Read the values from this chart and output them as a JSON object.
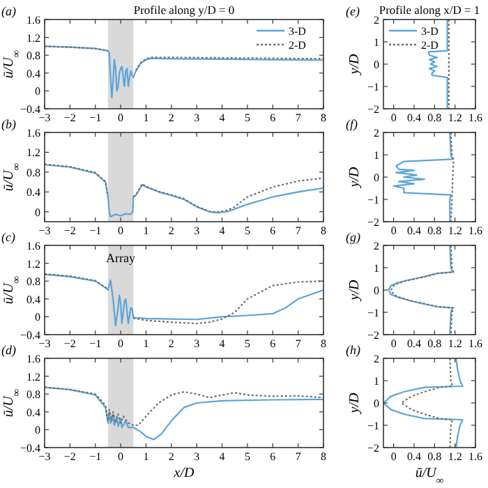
{
  "chart_data": [
    {
      "type": "line",
      "title": "Profile along y/D = 0",
      "annotations": [
        "(a)"
      ],
      "ylabel": "ū/U$_{∞}$",
      "xlim": [
        -3,
        8
      ],
      "xticks": [
        {
          "value": -3,
          "label": "−3"
        },
        {
          "value": -2,
          "label": "−2"
        },
        {
          "value": -1,
          "label": "−1"
        },
        0,
        1,
        2,
        3,
        4,
        5,
        6,
        7,
        8
      ],
      "ylim": [
        -0.4,
        1.6
      ],
      "yticks": [
        {
          "value": -0.4,
          "label": "−0.4"
        },
        0,
        0.4,
        0.8,
        1.2,
        1.6
      ],
      "legend": "top right",
      "bands": [
        {
          "axis": "x",
          "from": -0.5,
          "to": 0.5,
          "color": "#d9d9d9"
        }
      ],
      "series": [
        {
          "name": "3-D",
          "color": "#5aa5da",
          "line_style": "solid",
          "x": [
            -3,
            -2,
            -1,
            -0.5,
            -0.45,
            -0.4,
            -0.35,
            -0.3,
            -0.25,
            -0.2,
            -0.15,
            -0.1,
            -0.05,
            0,
            0.05,
            0.1,
            0.15,
            0.2,
            0.25,
            0.3,
            0.35,
            0.4,
            0.45,
            0.5,
            0.6,
            0.8,
            1,
            1.2,
            2,
            4,
            6,
            8
          ],
          "values": [
            1.0,
            0.98,
            0.95,
            0.9,
            0.85,
            0.3,
            -0.15,
            0.2,
            0.7,
            0.5,
            0.0,
            0.1,
            0.4,
            0.5,
            0.55,
            0.3,
            0.1,
            0.45,
            0.5,
            0.1,
            0.3,
            0.45,
            0.35,
            0.3,
            0.45,
            0.62,
            0.7,
            0.73,
            0.72,
            0.71,
            0.7,
            0.69
          ]
        },
        {
          "name": "2-D",
          "color": "#707070",
          "line_style": "dotted",
          "x": [
            -3,
            -2,
            -1,
            -0.5,
            0,
            0.6,
            0.8,
            1,
            1.2,
            2,
            4,
            6,
            8
          ],
          "values": [
            1.0,
            0.98,
            0.95,
            0.9,
            null,
            0.46,
            0.64,
            0.72,
            0.75,
            0.75,
            0.74,
            0.73,
            0.72
          ]
        }
      ]
    },
    {
      "type": "line",
      "annotations": [
        "(b)"
      ],
      "ylabel": "ū/U$_{∞}$",
      "xlim": [
        -3,
        8
      ],
      "xticks": [
        {
          "value": -3,
          "label": "−3"
        },
        {
          "value": -2,
          "label": "−2"
        },
        {
          "value": -1,
          "label": "−1"
        },
        0,
        1,
        2,
        3,
        4,
        5,
        6,
        7,
        8
      ],
      "ylim": [
        -0.2,
        1.6
      ],
      "yticks": [
        0,
        0.4,
        0.8,
        1.2,
        1.6
      ],
      "bands": [
        {
          "axis": "x",
          "from": -0.5,
          "to": 0.5,
          "color": "#d9d9d9"
        }
      ],
      "series": [
        {
          "color": "#5aa5da",
          "line_style": "solid",
          "x": [
            -3,
            -2,
            -1,
            -0.6,
            -0.5,
            -0.45,
            -0.4,
            -0.2,
            0,
            0.2,
            0.4,
            0.48,
            0.5,
            0.6,
            0.85,
            1,
            1.5,
            2,
            2.5,
            3,
            3.5,
            3.8,
            4.2,
            5,
            6,
            7,
            8
          ],
          "values": [
            0.95,
            0.9,
            0.78,
            0.6,
            0.3,
            0.0,
            -0.1,
            -0.05,
            -0.08,
            -0.04,
            -0.05,
            0.0,
            0.3,
            0.33,
            0.55,
            0.5,
            0.4,
            0.33,
            0.25,
            0.1,
            0.0,
            -0.02,
            0.0,
            0.15,
            0.3,
            0.4,
            0.48
          ]
        },
        {
          "color": "#707070",
          "line_style": "dotted",
          "x": [
            -3,
            -2,
            -1,
            -0.6,
            -0.5,
            0,
            0.5,
            0.6,
            0.85,
            1,
            1.5,
            2,
            2.5,
            3,
            3.5,
            3.8,
            4.2,
            4.5,
            5,
            6,
            7,
            8
          ],
          "values": [
            0.96,
            0.91,
            0.79,
            0.61,
            0.31,
            null,
            0.31,
            0.34,
            0.56,
            0.51,
            0.41,
            0.34,
            0.26,
            0.11,
            0.01,
            -0.01,
            0.03,
            0.1,
            0.3,
            0.5,
            0.62,
            0.68
          ]
        }
      ]
    },
    {
      "type": "line",
      "annotations": [
        "(c)"
      ],
      "ylabel": "ū/U$_{∞}$",
      "xlim": [
        -3,
        8
      ],
      "xticks": [
        {
          "value": -3,
          "label": "−3"
        },
        {
          "value": -2,
          "label": "−2"
        },
        {
          "value": -1,
          "label": "−1"
        },
        0,
        1,
        2,
        3,
        4,
        5,
        6,
        7,
        8
      ],
      "ylim": [
        -0.4,
        1.6
      ],
      "yticks": [
        {
          "value": -0.4,
          "label": "−0.4"
        },
        0,
        0.4,
        0.8,
        1.2,
        1.6
      ],
      "bands": [
        {
          "axis": "x",
          "from": -0.5,
          "to": 0.5,
          "label": "Array",
          "color": "#d9d9d9"
        }
      ],
      "series": [
        {
          "color": "#5aa5da",
          "line_style": "solid",
          "x": [
            -3,
            -2,
            -1,
            -0.6,
            -0.5,
            -0.4,
            -0.3,
            -0.2,
            -0.1,
            -0.05,
            0,
            0.05,
            0.15,
            0.2,
            0.3,
            0.4,
            0.45,
            0.5,
            1,
            2,
            3,
            4,
            5,
            6,
            6.5,
            7,
            8
          ],
          "values": [
            0.95,
            0.9,
            0.8,
            0.65,
            0.6,
            0.82,
            0.4,
            -0.2,
            0.2,
            0.48,
            0.3,
            -0.15,
            0.35,
            0.4,
            -0.15,
            0.2,
            0.18,
            -0.02,
            -0.04,
            -0.05,
            -0.06,
            0.0,
            0.03,
            0.07,
            0.2,
            0.4,
            0.6
          ]
        },
        {
          "color": "#707070",
          "line_style": "dotted",
          "x": [
            -3,
            -2,
            -1,
            -0.6,
            -0.5,
            0,
            0.5,
            1,
            2,
            3,
            3.5,
            4,
            4.5,
            5,
            6,
            7,
            8
          ],
          "values": [
            0.96,
            0.91,
            0.81,
            0.66,
            0.61,
            null,
            -0.03,
            -0.08,
            -0.12,
            -0.15,
            -0.12,
            -0.05,
            0.1,
            0.4,
            0.7,
            0.78,
            0.8
          ]
        }
      ]
    },
    {
      "type": "line",
      "annotations": [
        "(d)"
      ],
      "xlabel": "x/D",
      "ylabel": "ū/U$_{∞}$",
      "xlim": [
        -3,
        8
      ],
      "xticks": [
        {
          "value": -3,
          "label": "−3"
        },
        {
          "value": -2,
          "label": "−2"
        },
        {
          "value": -1,
          "label": "−1"
        },
        0,
        1,
        2,
        3,
        4,
        5,
        6,
        7,
        8
      ],
      "ylim": [
        -0.4,
        1.6
      ],
      "yticks": [
        {
          "value": -0.4,
          "label": "−0.4"
        },
        0,
        0.4,
        0.8,
        1.2,
        1.6
      ],
      "bands": [
        {
          "axis": "x",
          "from": -0.5,
          "to": 0.5,
          "color": "#d9d9d9"
        }
      ],
      "series": [
        {
          "color": "#5aa5da",
          "line_style": "solid",
          "x": [
            -3,
            -2,
            -1,
            -0.6,
            -0.5,
            -0.45,
            -0.4,
            -0.3,
            -0.25,
            -0.15,
            -0.1,
            0,
            0.05,
            0.2,
            0.3,
            0.5,
            0.8,
            1,
            1.3,
            1.6,
            2,
            2.5,
            3,
            4,
            6,
            8
          ],
          "values": [
            0.95,
            0.9,
            0.78,
            0.5,
            0.15,
            0.4,
            0.15,
            0.35,
            0.1,
            0.3,
            0.08,
            0.25,
            0.05,
            0.2,
            0.05,
            0.05,
            -0.05,
            -0.15,
            -0.22,
            -0.1,
            0.2,
            0.5,
            0.6,
            0.65,
            0.67,
            0.68
          ]
        },
        {
          "color": "#707070",
          "line_style": "dotted",
          "x": [
            -3,
            -2,
            -1,
            -0.6,
            -0.5,
            -0.45,
            -0.35,
            -0.3,
            -0.2,
            -0.1,
            0,
            0.1,
            0.3,
            0.5,
            0.7,
            1,
            1.5,
            2,
            2.5,
            3,
            3.5,
            4.5,
            5,
            6,
            7,
            8
          ],
          "values": [
            0.95,
            0.9,
            0.8,
            0.55,
            0.2,
            0.45,
            0.2,
            0.4,
            0.15,
            0.35,
            0.15,
            0.3,
            0.15,
            0.1,
            0.1,
            0.3,
            0.6,
            0.78,
            0.85,
            0.8,
            0.72,
            0.83,
            0.78,
            0.75,
            0.76,
            0.72
          ]
        }
      ]
    },
    {
      "type": "line",
      "title": "Profile along x/D = 1",
      "annotations": [
        "(e)"
      ],
      "ylabel": "y/D",
      "xlim": [
        -0.2,
        1.6
      ],
      "xticks": [
        0,
        0.4,
        0.8,
        1.2,
        1.6
      ],
      "ylim": [
        -2,
        2
      ],
      "yticks": [
        {
          "value": -2,
          "label": "−2"
        },
        {
          "value": -1,
          "label": "−1"
        },
        0,
        1,
        2
      ],
      "legend": "top left",
      "series": [
        {
          "name": "3-D",
          "color": "#5aa5da",
          "line_style": "solid",
          "x": [
            1.05,
            1.05,
            1.05,
            0.68,
            0.7,
            0.85,
            0.7,
            0.8,
            0.72,
            0.85,
            0.7,
            0.8,
            0.75,
            0.75,
            1.05,
            1.05
          ],
          "values": [
            2,
            1,
            0.6,
            0.55,
            0.4,
            0.3,
            0.2,
            0.1,
            0,
            -0.1,
            -0.2,
            -0.3,
            -0.4,
            -0.5,
            -0.6,
            -2
          ]
        },
        {
          "name": "2-D",
          "color": "#707070",
          "line_style": "dotted",
          "x": [
            1.08,
            1.08,
            1.08,
            1.08
          ],
          "values": [
            2,
            0.6,
            -0.6,
            -2
          ]
        }
      ]
    },
    {
      "type": "line",
      "annotations": [
        "(f)"
      ],
      "ylabel": "y/D",
      "xlim": [
        -0.2,
        1.6
      ],
      "xticks": [
        0,
        0.4,
        0.8,
        1.2,
        1.6
      ],
      "ylim": [
        -2,
        2
      ],
      "yticks": [
        {
          "value": -2,
          "label": "−2"
        },
        {
          "value": -1,
          "label": "−1"
        },
        0,
        1,
        2
      ],
      "series": [
        {
          "color": "#5aa5da",
          "line_style": "solid",
          "x": [
            1.1,
            1.12,
            1.15,
            0.2,
            0.05,
            0.1,
            0.4,
            0.05,
            0.45,
            0.2,
            0.6,
            0.1,
            0.4,
            0.0,
            0.2,
            0.2,
            1.12,
            1.1,
            1.1
          ],
          "values": [
            2,
            1,
            0.8,
            0.7,
            0.5,
            0.35,
            0.3,
            0.2,
            0.1,
            0,
            -0.1,
            -0.2,
            -0.3,
            -0.4,
            -0.5,
            -0.7,
            -0.8,
            -1,
            -2
          ]
        },
        {
          "color": "#707070",
          "line_style": "dotted",
          "x": [
            1.12,
            1.14,
            1.17,
            1.14,
            1.12
          ],
          "values": [
            2,
            1,
            0.8,
            -1,
            -2
          ]
        }
      ]
    },
    {
      "type": "line",
      "annotations": [
        "(g)"
      ],
      "ylabel": "y/D",
      "xlim": [
        -0.2,
        1.6
      ],
      "xticks": [
        0,
        0.4,
        0.8,
        1.2,
        1.6
      ],
      "ylim": [
        -2,
        2
      ],
      "yticks": [
        {
          "value": -2,
          "label": "−2"
        },
        {
          "value": -1,
          "label": "−1"
        },
        0,
        1,
        2
      ],
      "series": [
        {
          "color": "#5aa5da",
          "line_style": "solid",
          "x": [
            1.1,
            1.12,
            1.15,
            0.85,
            0.6,
            0.4,
            0.2,
            0.05,
            -0.05,
            -0.1,
            -0.05,
            0.05,
            0.35,
            0.55,
            0.85,
            1.15,
            1.12,
            1.1
          ],
          "values": [
            2,
            1,
            0.8,
            0.75,
            0.6,
            0.5,
            0.4,
            0.3,
            0.2,
            0,
            -0.2,
            -0.3,
            -0.5,
            -0.6,
            -0.75,
            -0.8,
            -1,
            -2
          ]
        },
        {
          "color": "#707070",
          "line_style": "dotted",
          "x": [
            1.12,
            1.14,
            1.17,
            0.87,
            0.62,
            0.42,
            0.22,
            0.08,
            0.0,
            -0.05,
            0.0,
            0.08,
            0.37,
            0.57,
            0.87,
            1.17,
            1.14,
            1.12
          ],
          "values": [
            2,
            1,
            0.8,
            0.75,
            0.6,
            0.5,
            0.4,
            0.3,
            0.2,
            0,
            -0.2,
            -0.3,
            -0.5,
            -0.6,
            -0.75,
            -0.8,
            -1,
            -2
          ]
        }
      ]
    },
    {
      "type": "line",
      "annotations": [
        "(h)"
      ],
      "xlabel": "ū/U$_{∞}$",
      "ylabel": "y/D",
      "xlim": [
        -0.2,
        1.6
      ],
      "xticks": [
        0,
        0.4,
        0.8,
        1.2,
        1.6
      ],
      "ylim": [
        -2,
        2
      ],
      "yticks": [
        {
          "value": -2,
          "label": "−2"
        },
        {
          "value": -1,
          "label": "−1"
        },
        0,
        1,
        2
      ],
      "series": [
        {
          "color": "#5aa5da",
          "line_style": "solid",
          "x": [
            1.22,
            1.25,
            1.3,
            1.35,
            0.6,
            0.2,
            -0.05,
            -0.2,
            -0.05,
            0.2,
            0.6,
            1.35,
            1.3,
            1.25,
            1.22
          ],
          "values": [
            2,
            1.5,
            1,
            0.75,
            0.7,
            0.5,
            0.3,
            0,
            -0.3,
            -0.5,
            -0.7,
            -0.75,
            -1,
            -1.5,
            -2
          ]
        },
        {
          "color": "#707070",
          "line_style": "dotted",
          "x": [
            1.1,
            1.12,
            1.15,
            0.9,
            0.6,
            0.35,
            0.15,
            0.35,
            0.6,
            0.9,
            1.15,
            1.12,
            1.1
          ],
          "values": [
            2,
            1,
            0.75,
            0.7,
            0.5,
            0.3,
            0,
            -0.3,
            -0.5,
            -0.7,
            -0.75,
            -1,
            -2
          ]
        }
      ]
    }
  ]
}
